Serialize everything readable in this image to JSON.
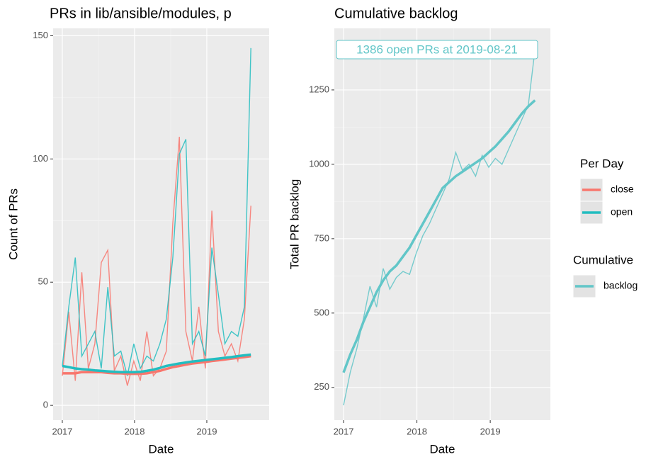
{
  "chart_data": [
    {
      "type": "line",
      "title": "PRs in lib/ansible/modules, p",
      "x_label": "Date",
      "y_label": "Count of PRs",
      "legend_title": "Per Day",
      "x": [
        2017,
        2017.09,
        2017.18,
        2017.27,
        2017.36,
        2017.45,
        2017.54,
        2017.63,
        2017.72,
        2017.81,
        2017.9,
        2017.99,
        2018.08,
        2018.17,
        2018.26,
        2018.35,
        2018.44,
        2018.53,
        2018.62,
        2018.71,
        2018.8,
        2018.89,
        2018.98,
        2019.07,
        2019.16,
        2019.25,
        2019.34,
        2019.43,
        2019.52,
        2019.61
      ],
      "series": [
        {
          "name": "close",
          "color": "#F8766D",
          "values": [
            12,
            38,
            10,
            54,
            15,
            25,
            58,
            63,
            14,
            20,
            8,
            18,
            10,
            30,
            12,
            15,
            22,
            74,
            109,
            30,
            18,
            40,
            15,
            79,
            30,
            20,
            25,
            18,
            35,
            81
          ],
          "smooth": [
            13,
            13,
            13,
            13.5,
            13.5,
            13.5,
            13.5,
            13.2,
            13,
            13,
            12.8,
            12.8,
            12.8,
            13,
            13.5,
            14,
            14.8,
            15.5,
            16,
            16.5,
            17,
            17.3,
            17.6,
            18,
            18.3,
            18.6,
            19,
            19.3,
            19.6,
            20
          ]
        },
        {
          "name": "open",
          "color": "#22BDC0",
          "values": [
            16,
            40,
            60,
            20,
            25,
            30,
            15,
            48,
            20,
            22,
            12,
            25,
            15,
            20,
            18,
            25,
            35,
            60,
            102,
            108,
            25,
            30,
            20,
            64,
            45,
            25,
            30,
            28,
            40,
            145
          ],
          "smooth": [
            16,
            15.5,
            15,
            14.7,
            14.5,
            14.2,
            14,
            13.8,
            13.6,
            13.5,
            13.5,
            13.5,
            13.6,
            14,
            14.5,
            15.2,
            16,
            16.5,
            17,
            17.4,
            17.8,
            18.1,
            18.4,
            18.7,
            19,
            19.3,
            19.6,
            20,
            20.3,
            20.6
          ]
        }
      ],
      "xlim": [
        2016.873,
        2019.863
      ],
      "xticks": [
        2017,
        2018,
        2019
      ],
      "ylim": [
        -6,
        153
      ],
      "yticks": [
        0,
        50,
        100,
        150
      ],
      "grid": true
    },
    {
      "type": "line",
      "title": "Cumulative backlog",
      "x_label": "Date",
      "y_label": "Total PR backlog",
      "legend_title": "Cumulative",
      "annotation": "1386 open PRs at 2019-08-21",
      "x": [
        2017,
        2017.09,
        2017.18,
        2017.27,
        2017.36,
        2017.45,
        2017.54,
        2017.63,
        2017.72,
        2017.81,
        2017.9,
        2017.99,
        2018.08,
        2018.17,
        2018.26,
        2018.35,
        2018.44,
        2018.53,
        2018.62,
        2018.71,
        2018.8,
        2018.89,
        2018.98,
        2019.07,
        2019.16,
        2019.25,
        2019.34,
        2019.43,
        2019.52,
        2019.61
      ],
      "series": [
        {
          "name": "backlog",
          "color": "#62C6C8",
          "values": [
            190,
            300,
            380,
            480,
            590,
            520,
            650,
            580,
            620,
            640,
            630,
            700,
            760,
            800,
            850,
            900,
            950,
            1040,
            980,
            1000,
            960,
            1030,
            990,
            1020,
            1000,
            1050,
            1100,
            1150,
            1200,
            1386
          ],
          "smooth": [
            300,
            360,
            410,
            470,
            520,
            570,
            610,
            640,
            660,
            690,
            720,
            760,
            800,
            840,
            880,
            920,
            940,
            960,
            975,
            990,
            1005,
            1020,
            1040,
            1060,
            1085,
            1110,
            1140,
            1170,
            1195,
            1215
          ]
        }
      ],
      "xlim": [
        2016.874,
        2019.82
      ],
      "xticks": [
        2017,
        2018,
        2019
      ],
      "ylim": [
        140,
        1457
      ],
      "yticks": [
        250,
        500,
        750,
        1000,
        1250
      ],
      "grid": true
    }
  ]
}
